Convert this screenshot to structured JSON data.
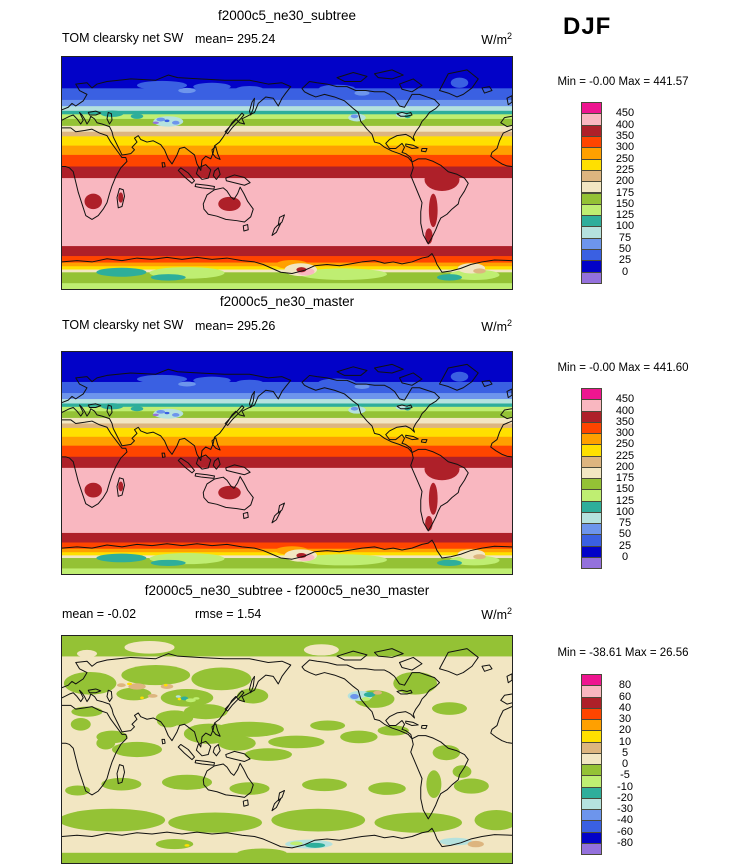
{
  "season": "DJF",
  "palette": [
    "#EE1590",
    "#F9B7C0",
    "#AE2029",
    "#FF4500",
    "#FFA000",
    "#FFE000",
    "#DDB57F",
    "#F2E6C2",
    "#94C235",
    "#BFEE72",
    "#2EAE9B",
    "#B5E2DE",
    "#6D95EC",
    "#3A60E2",
    "#0202C8",
    "#9471DC"
  ],
  "bands": {
    "sw": [
      [
        0,
        0.135,
        14
      ],
      [
        0.135,
        0.185,
        13
      ],
      [
        0.185,
        0.212,
        12
      ],
      [
        0.212,
        0.232,
        11
      ],
      [
        0.232,
        0.247,
        10
      ],
      [
        0.247,
        0.267,
        9
      ],
      [
        0.267,
        0.297,
        8
      ],
      [
        0.297,
        0.322,
        7
      ],
      [
        0.322,
        0.342,
        6
      ],
      [
        0.342,
        0.382,
        5
      ],
      [
        0.382,
        0.422,
        4
      ],
      [
        0.422,
        0.472,
        3
      ],
      [
        0.472,
        0.522,
        2
      ],
      [
        0.522,
        0.815,
        1
      ],
      [
        0.815,
        0.858,
        2
      ],
      [
        0.858,
        0.886,
        3
      ],
      [
        0.886,
        0.902,
        4
      ],
      [
        0.902,
        0.916,
        5
      ],
      [
        0.916,
        0.928,
        7
      ],
      [
        0.928,
        0.975,
        8
      ],
      [
        0.975,
        1,
        9
      ]
    ],
    "diff": [
      [
        0,
        0.09,
        8
      ],
      [
        0.09,
        0.955,
        7
      ],
      [
        0.955,
        1,
        8
      ]
    ]
  },
  "chart_data": [
    {
      "type": "filled_contour_map",
      "map_style": "sw",
      "title": "f2000c5_ne30_subtree",
      "variable": "TOM clearsky net SW",
      "units_base": "W/m",
      "units_exp": "2",
      "mean_label": "mean=",
      "mean_value": "295.24",
      "min": "-0.00",
      "max": "441.57",
      "min_max_text": "Min = -0.00 Max = 441.57",
      "levels": [
        450,
        400,
        350,
        300,
        250,
        225,
        200,
        175,
        150,
        125,
        100,
        75,
        50,
        25,
        0
      ]
    },
    {
      "type": "filled_contour_map",
      "map_style": "sw",
      "title": "f2000c5_ne30_master",
      "variable": "TOM clearsky net SW",
      "units_base": "W/m",
      "units_exp": "2",
      "mean_label": "mean=",
      "mean_value": "295.26",
      "min": "-0.00",
      "max": "441.60",
      "min_max_text": "Min = -0.00 Max = 441.60",
      "levels": [
        450,
        400,
        350,
        300,
        250,
        225,
        200,
        175,
        150,
        125,
        100,
        75,
        50,
        25,
        0
      ]
    },
    {
      "type": "filled_contour_map",
      "map_style": "diff",
      "title": "f2000c5_ne30_subtree - f2000c5_ne30_master",
      "mean_label": "mean =",
      "mean_value": "-0.02",
      "rmse_label": "rmse =",
      "rmse_value": "1.54",
      "units_base": "W/m",
      "units_exp": "2",
      "min": "-38.61",
      "max": "26.56",
      "min_max_text": "Min = -38.61 Max =  26.56",
      "levels": [
        80,
        60,
        40,
        30,
        20,
        10,
        5,
        0,
        -5,
        -10,
        -20,
        -30,
        -40,
        -60,
        -80
      ]
    }
  ]
}
